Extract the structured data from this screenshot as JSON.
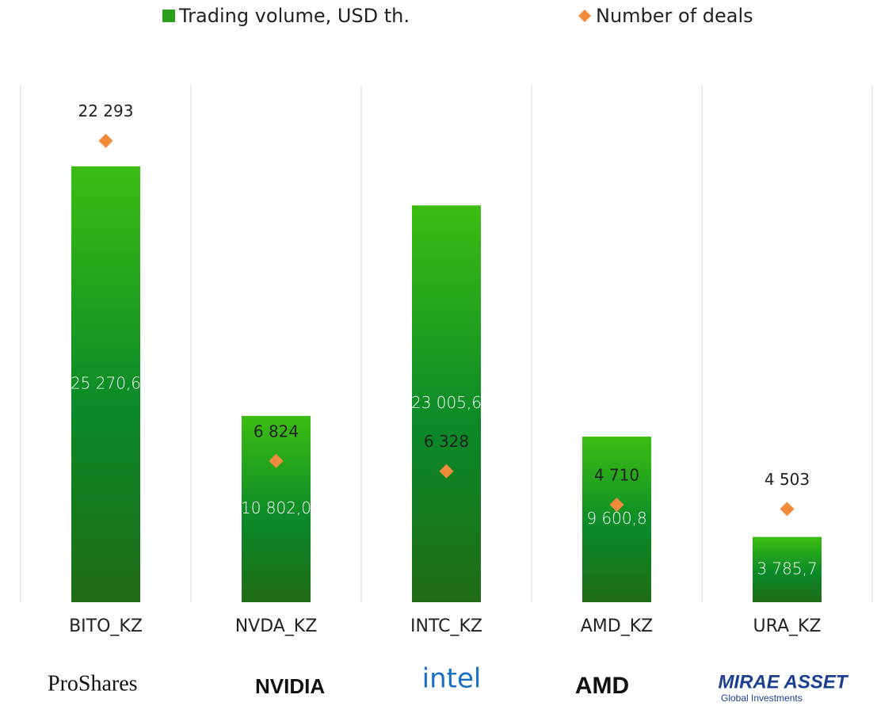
{
  "chart_data": {
    "type": "bar",
    "categories": [
      "BITO_KZ",
      "NVDA_KZ",
      "INTC_KZ",
      "AMD_KZ",
      "URA_KZ"
    ],
    "series": [
      {
        "name": "Trading volume, USD th.",
        "color": "#2aa01a",
        "values": [
          25270.6,
          10802.0,
          23005.6,
          9600.8,
          3785.7
        ],
        "value_labels": [
          "25 270,6",
          "10 802,0",
          "23 005,6",
          "9 600,8",
          "3 785,7"
        ]
      },
      {
        "name": "Number of deals",
        "color": "#f28a3c",
        "axis": "y2",
        "values": [
          22293,
          6824,
          6328,
          4710,
          4503
        ],
        "value_labels": [
          "22 293",
          "6 824",
          "6 328",
          "4 710",
          "4 503"
        ]
      }
    ],
    "ylim": [
      0,
      30000
    ],
    "y2lim": [
      0,
      25000
    ],
    "logos": [
      "ProShares",
      "NVIDIA",
      "intel",
      "AMD",
      "MIRAE ASSET",
      "Global Investments"
    ]
  }
}
